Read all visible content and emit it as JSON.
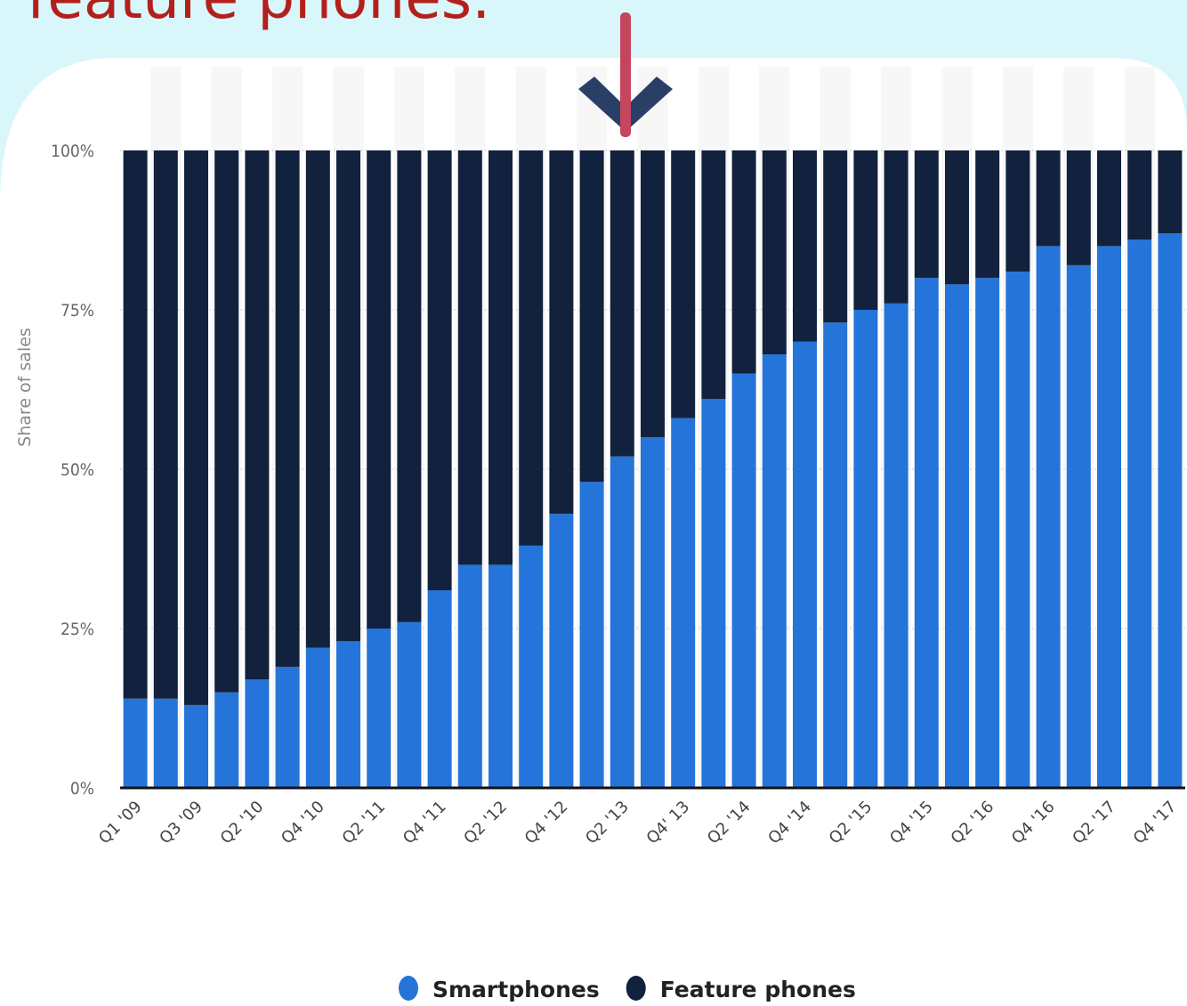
{
  "chart_data": {
    "type": "stacked-bar",
    "title": "feature phones.",
    "y_label": "Share of sales",
    "categories": [
      "Q1 '09",
      null,
      "Q3 '09",
      null,
      "Q2 '10",
      null,
      "Q4 '10",
      null,
      "Q2 '11",
      null,
      "Q4 '11",
      null,
      "Q2 '12",
      null,
      "Q4 '12",
      null,
      "Q2 '13",
      null,
      "Q4' 13",
      null,
      "Q2 '14",
      null,
      "Q4 '14",
      null,
      "Q2 '15",
      null,
      "Q4 '15",
      null,
      "Q2 '16",
      null,
      "Q4 '16",
      null,
      "Q2 '17",
      null,
      "Q4 '17"
    ],
    "series": [
      {
        "name": "Smartphones",
        "color": "#2574d9",
        "values": [
          14,
          14,
          13,
          15,
          17,
          19,
          22,
          23,
          25,
          26,
          31,
          35,
          35,
          38,
          43,
          48,
          52,
          55,
          58,
          61,
          65,
          68,
          70,
          73,
          75,
          76,
          80,
          79,
          80,
          81,
          85,
          82,
          85,
          86,
          87
        ]
      },
      {
        "name": "Feature phones",
        "color": "#12213d",
        "values": [
          86,
          86,
          87,
          85,
          83,
          81,
          78,
          77,
          75,
          74,
          69,
          65,
          65,
          62,
          57,
          52,
          48,
          45,
          42,
          39,
          35,
          32,
          30,
          27,
          25,
          24,
          20,
          21,
          20,
          19,
          15,
          18,
          15,
          14,
          13
        ]
      }
    ],
    "ylim": [
      0,
      100
    ],
    "yticks": [
      {
        "value": 0,
        "label": "0%"
      },
      {
        "value": 25,
        "label": "25%"
      },
      {
        "value": 50,
        "label": "50%"
      },
      {
        "value": 75,
        "label": "75%"
      },
      {
        "value": 100,
        "label": "100%"
      }
    ],
    "grid": true
  }
}
